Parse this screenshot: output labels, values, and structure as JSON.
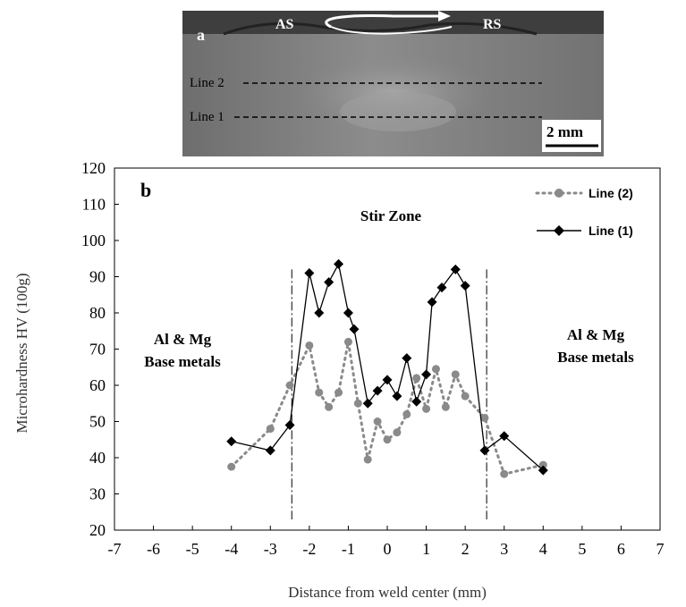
{
  "micrograph": {
    "panel_label": "a",
    "advancing_side_label": "AS",
    "retreating_side_label": "RS",
    "line2_label": "Line 2",
    "line1_label": "Line 1",
    "scale_bar_label": "2 mm"
  },
  "chart_data": {
    "type": "line",
    "panel_label": "b",
    "xlabel": "Distance from weld center (mm)",
    "ylabel": "Microhardness HV (100g)",
    "xlim": [
      -7,
      7
    ],
    "ylim": [
      20,
      120
    ],
    "x_ticks": [
      -7,
      -6,
      -5,
      -4,
      -3,
      -2,
      -1,
      0,
      1,
      2,
      3,
      4,
      5,
      6,
      7
    ],
    "y_ticks": [
      20,
      30,
      40,
      50,
      60,
      70,
      80,
      90,
      100,
      110,
      120
    ],
    "grid": false,
    "legend_position": "top-right",
    "series": [
      {
        "name": "Line (2)",
        "style": "dotted",
        "marker": "circle",
        "color": "#8a8a8a",
        "points": [
          [
            -4,
            37.5
          ],
          [
            -3,
            48
          ],
          [
            -2.5,
            60
          ],
          [
            -2,
            71
          ],
          [
            -1.75,
            58
          ],
          [
            -1.5,
            54
          ],
          [
            -1.25,
            58
          ],
          [
            -1,
            72
          ],
          [
            -0.75,
            55
          ],
          [
            -0.5,
            39.5
          ],
          [
            -0.25,
            50
          ],
          [
            0,
            45
          ],
          [
            0.25,
            47
          ],
          [
            0.5,
            52
          ],
          [
            0.75,
            62
          ],
          [
            1,
            53.5
          ],
          [
            1.25,
            64.5
          ],
          [
            1.5,
            54
          ],
          [
            1.75,
            63
          ],
          [
            2,
            57
          ],
          [
            2.5,
            51
          ],
          [
            3,
            35.5
          ],
          [
            4,
            38
          ]
        ]
      },
      {
        "name": "Line (1)",
        "style": "solid",
        "marker": "diamond",
        "color": "#000000",
        "points": [
          [
            -4,
            44.5
          ],
          [
            -3,
            42
          ],
          [
            -2.5,
            49
          ],
          [
            -2,
            91
          ],
          [
            -1.75,
            80
          ],
          [
            -1.5,
            88.5
          ],
          [
            -1.25,
            93.5
          ],
          [
            -1,
            80
          ],
          [
            -0.85,
            75.5
          ],
          [
            -0.5,
            55
          ],
          [
            -0.25,
            58.5
          ],
          [
            0,
            61.5
          ],
          [
            0.25,
            57
          ],
          [
            0.5,
            67.5
          ],
          [
            0.75,
            55.5
          ],
          [
            1,
            63
          ],
          [
            1.15,
            83
          ],
          [
            1.4,
            87
          ],
          [
            1.75,
            92
          ],
          [
            2,
            87.5
          ],
          [
            2.5,
            42
          ],
          [
            3,
            46
          ],
          [
            4,
            36.5
          ]
        ]
      }
    ],
    "vertical_reference_lines": [
      -2.45,
      2.55
    ],
    "annotations": {
      "center": "Stir Zone",
      "left_line1": "Al & Mg",
      "left_line2": "Base metals",
      "right_line1": "Al & Mg",
      "right_line2": "Base metals"
    }
  }
}
